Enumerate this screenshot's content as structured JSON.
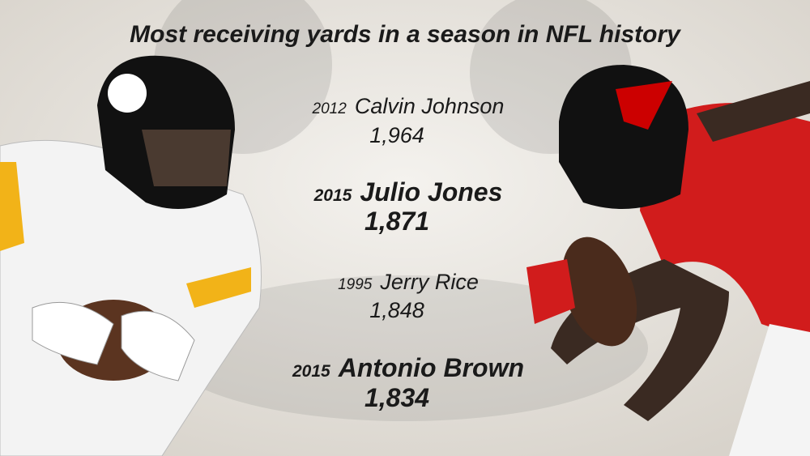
{
  "header": {
    "title": "Most receiving yards in a season in NFL history"
  },
  "entries": [
    {
      "year": "2012",
      "name": "Calvin Johnson",
      "yards": "1,964"
    },
    {
      "year": "2015",
      "name": "Julio Jones",
      "yards": "1,871"
    },
    {
      "year": "1995",
      "name": "Jerry Rice",
      "yards": "1,848"
    },
    {
      "year": "2015",
      "name": "Antonio Brown",
      "yards": "1,834"
    }
  ]
}
